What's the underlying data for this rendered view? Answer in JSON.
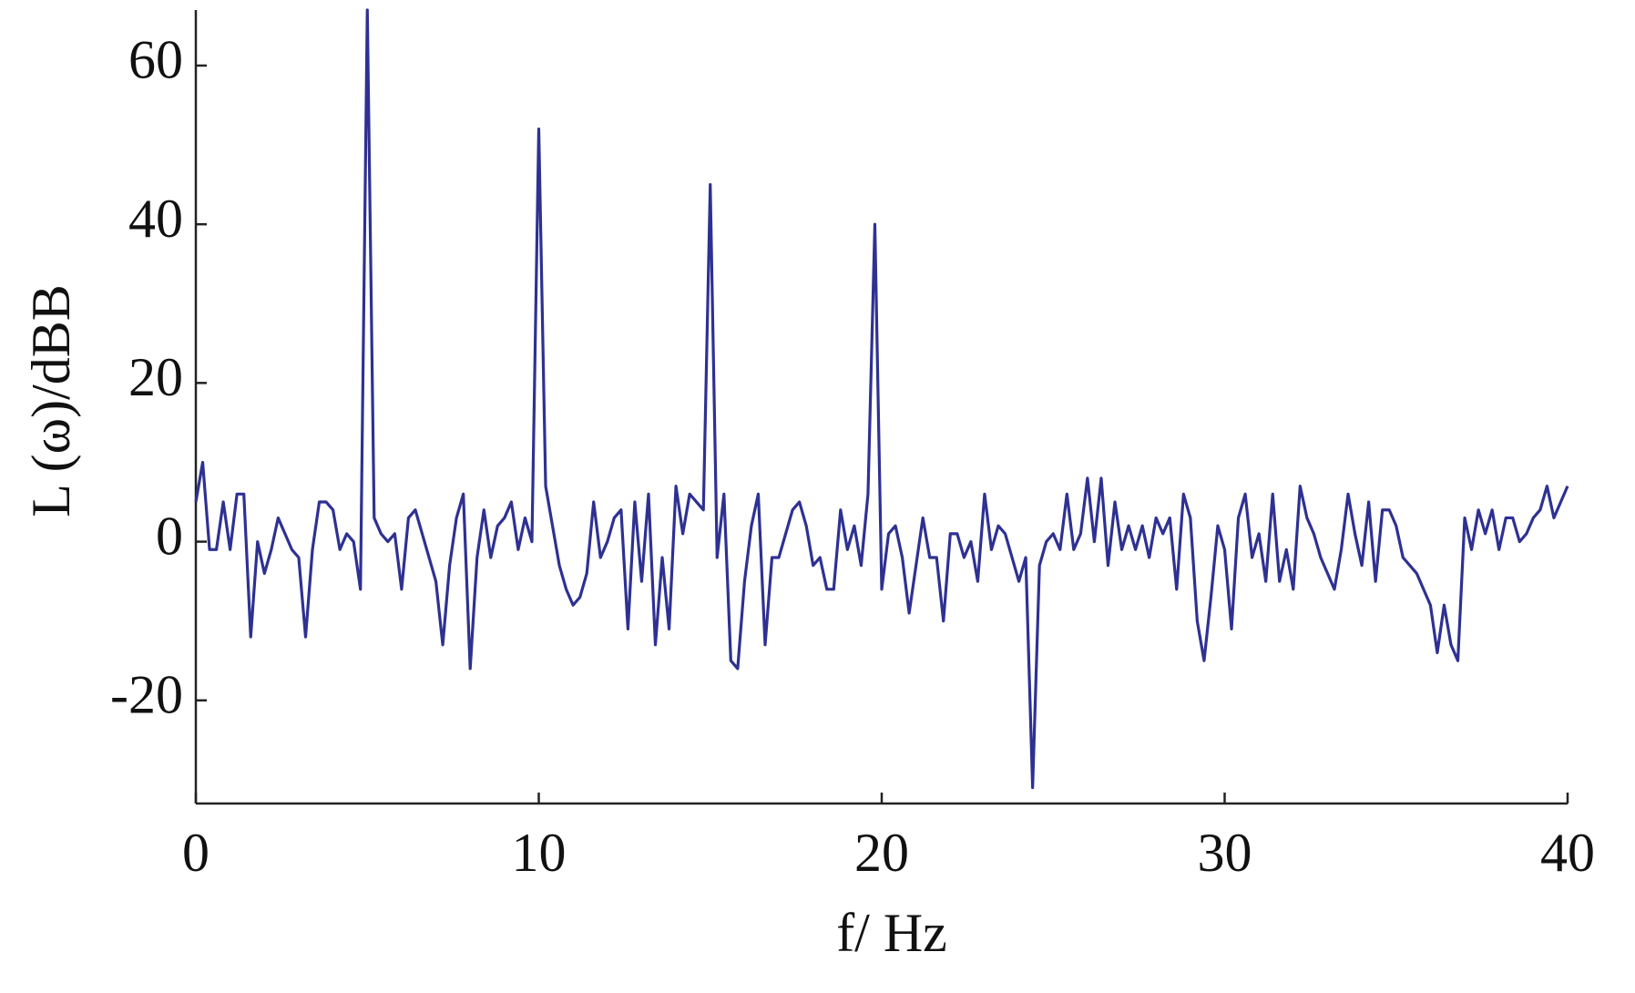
{
  "chart_data": {
    "type": "line",
    "xlabel": "f/ Hz",
    "ylabel": "L (ω)/dBB",
    "color": "#2e3192",
    "xlim": [
      0,
      40
    ],
    "xticks": [
      0,
      10,
      20,
      30,
      40
    ],
    "ylim": [
      -33,
      67
    ],
    "yticks": [
      -20,
      0,
      20,
      40,
      60
    ],
    "x": [
      0,
      0.2,
      0.4,
      0.6,
      0.8,
      1,
      1.2,
      1.4,
      1.6,
      1.8,
      2,
      2.2,
      2.4,
      2.6,
      2.8,
      3,
      3.2,
      3.4,
      3.6,
      3.8,
      4,
      4.2,
      4.4,
      4.6,
      4.8,
      5,
      5.2,
      5.4,
      5.6,
      5.8,
      6,
      6.2,
      6.4,
      6.6,
      6.8,
      7,
      7.2,
      7.4,
      7.6,
      7.8,
      8,
      8.2,
      8.4,
      8.6,
      8.8,
      9,
      9.2,
      9.4,
      9.6,
      9.8,
      10,
      10.2,
      10.4,
      10.6,
      10.8,
      11,
      11.2,
      11.4,
      11.6,
      11.8,
      12,
      12.2,
      12.4,
      12.6,
      12.8,
      13,
      13.2,
      13.4,
      13.6,
      13.8,
      14,
      14.2,
      14.4,
      14.6,
      14.8,
      15,
      15.2,
      15.4,
      15.6,
      15.8,
      16,
      16.2,
      16.4,
      16.6,
      16.8,
      17,
      17.2,
      17.4,
      17.6,
      17.8,
      18,
      18.2,
      18.4,
      18.6,
      18.8,
      19,
      19.2,
      19.4,
      19.6,
      19.8,
      20,
      20.2,
      20.4,
      20.6,
      20.8,
      21,
      21.2,
      21.4,
      21.6,
      21.8,
      22,
      22.2,
      22.4,
      22.6,
      22.8,
      23,
      23.2,
      23.4,
      23.6,
      23.8,
      24,
      24.2,
      24.4,
      24.6,
      24.8,
      25,
      25.2,
      25.4,
      25.6,
      25.8,
      26,
      26.2,
      26.4,
      26.6,
      26.8,
      27,
      27.2,
      27.4,
      27.6,
      27.8,
      28,
      28.2,
      28.4,
      28.6,
      28.8,
      29,
      29.2,
      29.4,
      29.6,
      29.8,
      30,
      30.2,
      30.4,
      30.6,
      30.8,
      31,
      31.2,
      31.4,
      31.6,
      31.8,
      32,
      32.2,
      32.4,
      32.6,
      32.8,
      33,
      33.2,
      33.4,
      33.6,
      33.8,
      34,
      34.2,
      34.4,
      34.6,
      34.8,
      35,
      35.2,
      35.4,
      35.6,
      35.8,
      36,
      36.2,
      36.4,
      36.6,
      36.8,
      37,
      37.2,
      37.4,
      37.6,
      37.8,
      38,
      38.2,
      38.4,
      38.6,
      38.8,
      39,
      39.2,
      39.4,
      39.6,
      39.8,
      40
    ],
    "values": [
      5,
      10,
      -1,
      -1,
      5,
      -1,
      6,
      6,
      -12,
      0,
      -4,
      -1,
      3,
      1,
      -1,
      -2,
      -12,
      -1,
      5,
      5,
      4,
      -1,
      1,
      0,
      -6,
      67,
      3,
      1,
      0,
      1,
      -6,
      3,
      4,
      1,
      -2,
      -5,
      -13,
      -3,
      3,
      6,
      -16,
      -2,
      4,
      -2,
      2,
      3,
      5,
      -1,
      3,
      0,
      52,
      7,
      2,
      -3,
      -6,
      -8,
      -7,
      -4,
      5,
      -2,
      0,
      3,
      4,
      -11,
      5,
      -5,
      6,
      -13,
      -2,
      -11,
      7,
      1,
      6,
      5,
      4,
      45,
      -2,
      6,
      -15,
      -16,
      -5,
      2,
      6,
      -13,
      -2,
      -2,
      1,
      4,
      5,
      2,
      -3,
      -2,
      -6,
      -6,
      4,
      -1,
      2,
      -3,
      6,
      40,
      -6,
      1,
      2,
      -2,
      -9,
      -3,
      3,
      -2,
      -2,
      -10,
      1,
      1,
      -2,
      0,
      -5,
      6,
      -1,
      2,
      1,
      -2,
      -5,
      -2,
      -31,
      -3,
      0,
      1,
      -1,
      6,
      -1,
      1,
      8,
      0,
      8,
      -3,
      5,
      -1,
      2,
      -1,
      2,
      -2,
      3,
      1,
      3,
      -6,
      6,
      3,
      -10,
      -15,
      -7,
      2,
      -1,
      -11,
      3,
      6,
      -2,
      1,
      -5,
      6,
      -5,
      -1,
      -6,
      7,
      3,
      1,
      -2,
      -4,
      -6,
      -1,
      6,
      1,
      -3,
      5,
      -5,
      4,
      4,
      2,
      -2,
      -3,
      -4,
      -6,
      -8,
      -14,
      -8,
      -13,
      -15,
      3,
      -1,
      4,
      1,
      4,
      -1,
      3,
      3,
      0,
      1,
      3,
      4,
      7,
      3,
      5,
      7
    ]
  }
}
